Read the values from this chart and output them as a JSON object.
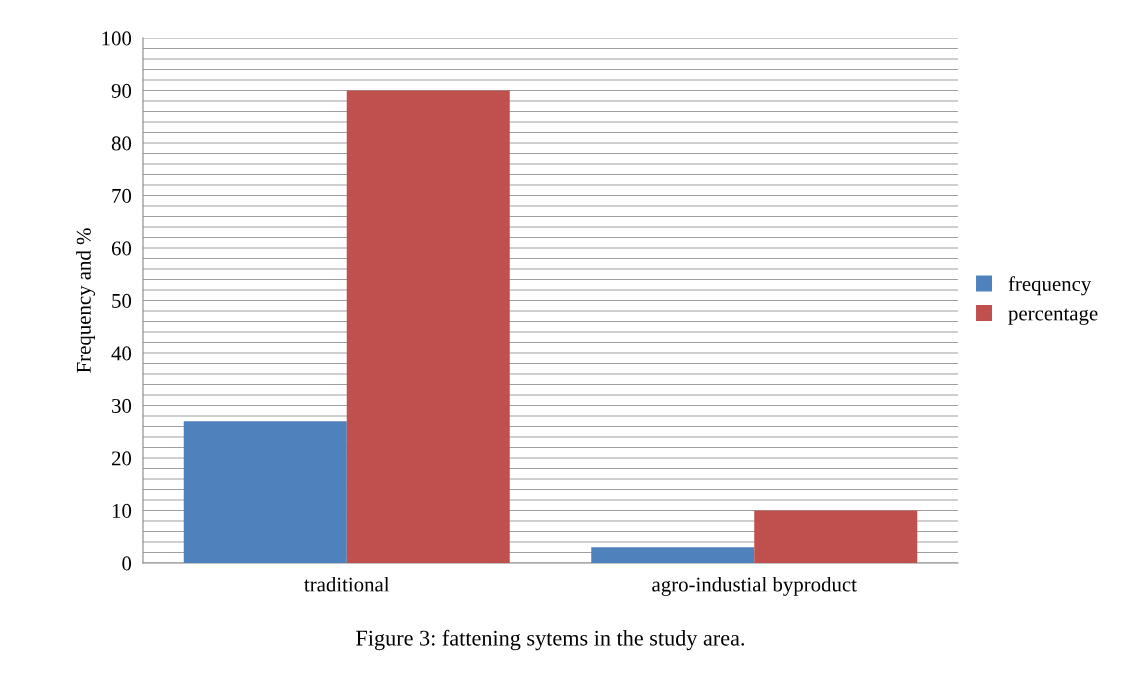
{
  "chart_data": {
    "type": "bar",
    "title": "Figure 3: fattening sytems in the study area.",
    "ylabel": "Frequency and %",
    "categories": [
      "traditional",
      "agro-industial byproduct"
    ],
    "series": [
      {
        "name": "frequency",
        "color": "#4f81bd",
        "values": [
          27,
          3
        ]
      },
      {
        "name": "percentage",
        "color": "#c0504d",
        "values": [
          90,
          10
        ]
      }
    ],
    "ylim": [
      0,
      100
    ],
    "yticks": [
      0,
      {
        "value": 2,
        "label": null
      },
      {
        "value": 4,
        "label": null
      },
      {
        "value": 6,
        "label": null
      },
      {
        "value": 8,
        "label": null
      },
      10,
      {
        "value": 12,
        "label": null
      },
      {
        "value": 14,
        "label": null
      },
      {
        "value": 16,
        "label": null
      },
      {
        "value": 18,
        "label": null
      },
      20,
      {
        "value": 22,
        "label": null
      },
      {
        "value": 24,
        "label": null
      },
      {
        "value": 26,
        "label": null
      },
      {
        "value": 28,
        "label": null
      },
      30,
      {
        "value": 32,
        "label": null
      },
      {
        "value": 34,
        "label": null
      },
      {
        "value": 36,
        "label": null
      },
      {
        "value": 38,
        "label": null
      },
      40,
      {
        "value": 42,
        "label": null
      },
      {
        "value": 44,
        "label": null
      },
      {
        "value": 46,
        "label": null
      },
      {
        "value": 48,
        "label": null
      },
      50,
      {
        "value": 52,
        "label": null
      },
      {
        "value": 54,
        "label": null
      },
      {
        "value": 56,
        "label": null
      },
      {
        "value": 58,
        "label": null
      },
      60,
      {
        "value": 62,
        "label": null
      },
      {
        "value": 64,
        "label": null
      },
      {
        "value": 66,
        "label": null
      },
      {
        "value": 68,
        "label": null
      },
      70,
      {
        "value": 72,
        "label": null
      },
      {
        "value": 74,
        "label": null
      },
      {
        "value": 76,
        "label": null
      },
      {
        "value": 78,
        "label": null
      },
      80,
      {
        "value": 82,
        "label": null
      },
      {
        "value": 84,
        "label": null
      },
      {
        "value": 86,
        "label": null
      },
      {
        "value": 88,
        "label": null
      },
      90,
      {
        "value": 92,
        "label": null
      },
      {
        "value": 94,
        "label": null
      },
      {
        "value": 96,
        "label": null
      },
      {
        "value": 98,
        "label": null
      },
      100
    ],
    "grid": "y",
    "legend": "right"
  }
}
